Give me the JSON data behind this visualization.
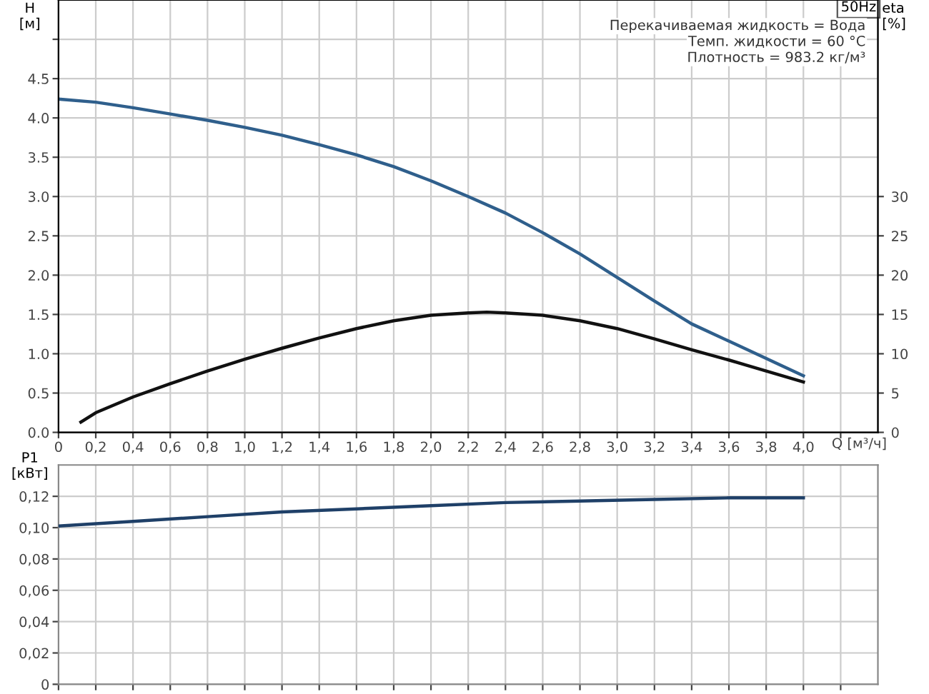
{
  "chart_data": [
    {
      "type": "line",
      "xlabel": "Q [м³/ч]",
      "ylabel": "H\n[м]",
      "y2label": "eta\n[%]",
      "annotations": [
        "50Hz",
        "Перекачиваемая жидкость = Вода",
        "Темп. жидкости = 60 °C",
        "Плотность = 983.2 кг/м³"
      ],
      "series": [
        {
          "color": "#2f5f8c",
          "x": [
            0,
            0.2,
            0.4,
            0.6,
            0.8,
            1.0,
            1.2,
            1.4,
            1.6,
            1.8,
            2.0,
            2.2,
            2.4,
            2.6,
            2.8,
            3.0,
            3.2,
            3.4,
            3.6,
            3.8,
            4.0
          ],
          "values": [
            4.24,
            4.2,
            4.13,
            4.05,
            3.97,
            3.88,
            3.78,
            3.66,
            3.53,
            3.38,
            3.2,
            3.0,
            2.79,
            2.54,
            2.27,
            1.97,
            1.67,
            1.38,
            1.16,
            0.94,
            0.72
          ]
        },
        {
          "color": "#111111",
          "axis": "y2",
          "x": [
            0.12,
            0.2,
            0.4,
            0.6,
            0.8,
            1.0,
            1.2,
            1.4,
            1.6,
            1.8,
            2.0,
            2.2,
            2.3,
            2.4,
            2.6,
            2.8,
            3.0,
            3.2,
            3.4,
            3.6,
            3.8,
            4.0
          ],
          "values": [
            1.3,
            2.5,
            4.5,
            6.2,
            7.8,
            9.3,
            10.7,
            12.0,
            13.2,
            14.2,
            14.9,
            15.2,
            15.3,
            15.2,
            14.9,
            14.2,
            13.2,
            11.9,
            10.5,
            9.2,
            7.8,
            6.4
          ]
        }
      ],
      "xlim": [
        0,
        4.4
      ],
      "xticks": [
        0,
        {
          "value": 0.2,
          "label": "0,2"
        },
        {
          "value": 0.4,
          "label": "0,4"
        },
        {
          "value": 0.6,
          "label": "0,6"
        },
        {
          "value": 0.8,
          "label": "0,8"
        },
        {
          "value": 1.0,
          "label": "1,0"
        },
        {
          "value": 1.2,
          "label": "1,2"
        },
        {
          "value": 1.4,
          "label": "1,4"
        },
        {
          "value": 1.6,
          "label": "1,6"
        },
        {
          "value": 1.8,
          "label": "1,8"
        },
        {
          "value": 2.0,
          "label": "2,0"
        },
        {
          "value": 2.2,
          "label": "2,2"
        },
        {
          "value": 2.4,
          "label": "2,4"
        },
        {
          "value": 2.6,
          "label": "2,6"
        },
        {
          "value": 2.8,
          "label": "2,8"
        },
        {
          "value": 3.0,
          "label": "3,0"
        },
        {
          "value": 3.2,
          "label": "3,2"
        },
        {
          "value": 3.4,
          "label": "3,4"
        },
        {
          "value": 3.6,
          "label": "3,6"
        },
        {
          "value": 3.8,
          "label": "3,8"
        },
        {
          "value": 4.0,
          "label": "4,0"
        },
        {
          "value": 4.2,
          "label": null
        }
      ],
      "ylim": [
        0,
        5.5
      ],
      "yticks": [
        {
          "value": 0,
          "label": "0.0"
        },
        0.5,
        {
          "value": 1,
          "label": "1.0"
        },
        1.5,
        {
          "value": 2,
          "label": "2.0"
        },
        2.5,
        {
          "value": 3,
          "label": "3.0"
        },
        3.5,
        {
          "value": 4,
          "label": "4.0"
        },
        4.5,
        {
          "value": 5,
          "label": null
        }
      ],
      "y2lim": [
        0,
        55
      ],
      "y2ticks": [
        0,
        5,
        10,
        15,
        20,
        25,
        30
      ],
      "grid": true,
      "legend": false,
      "marker": "none",
      "line_style": "solid"
    },
    {
      "type": "line",
      "ylabel": "P1\n[кВт]",
      "series": [
        {
          "color": "#1f4068",
          "x": [
            0,
            0.4,
            0.8,
            1.2,
            1.6,
            2.0,
            2.4,
            2.8,
            3.2,
            3.6,
            4.0
          ],
          "values": [
            0.101,
            0.104,
            0.107,
            0.11,
            0.112,
            0.114,
            0.116,
            0.117,
            0.118,
            0.119,
            0.119
          ]
        }
      ],
      "xlim": [
        0,
        4.4
      ],
      "xticks": [
        0,
        0.2,
        0.4,
        0.6,
        0.8,
        1.0,
        1.2,
        1.4,
        1.6,
        1.8,
        2.0,
        2.2,
        2.4,
        2.6,
        2.8,
        3.0,
        3.2,
        3.4,
        3.6,
        3.8,
        4.0,
        4.2
      ],
      "ylim": [
        0,
        0.14
      ],
      "yticks": [
        0,
        {
          "value": 0.02,
          "label": "0,02"
        },
        {
          "value": 0.04,
          "label": "0,04"
        },
        {
          "value": 0.06,
          "label": "0,06"
        },
        {
          "value": 0.08,
          "label": "0,08"
        },
        {
          "value": 0.1,
          "label": "0,10"
        },
        {
          "value": 0.12,
          "label": "0,12"
        }
      ],
      "tick_labels": "y",
      "grid": true,
      "legend": false,
      "marker": "none",
      "line_style": "solid"
    }
  ]
}
